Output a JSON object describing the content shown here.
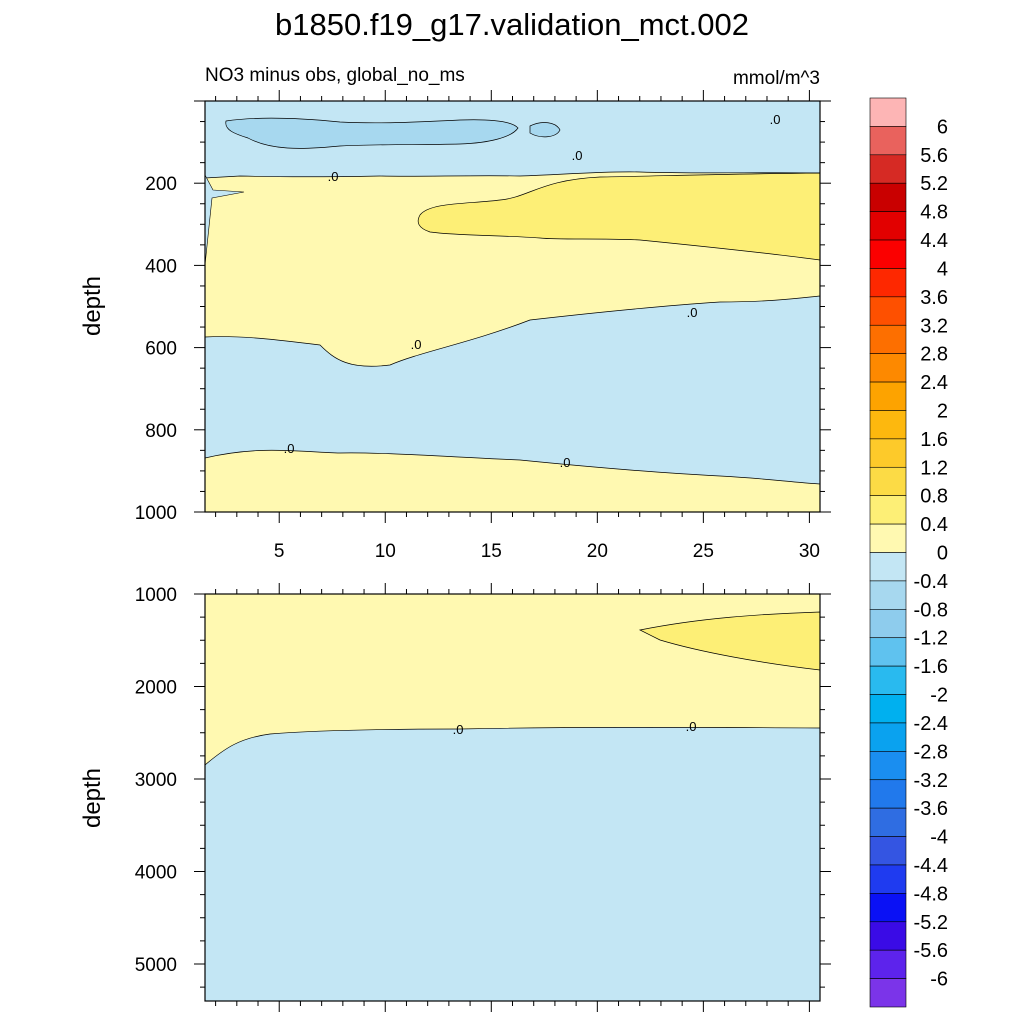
{
  "title": "b1850.f19_g17.validation_mct.002",
  "subtitle_left": "NO3 minus obs, global_no_ms",
  "subtitle_right": "mmol/m^3",
  "colors": {
    "neg_pale": "#c3e6f4",
    "neg_mid": "#a7d8ef",
    "pos_pale": "#fff9b1",
    "pos_mid": "#fdef76",
    "pos_strong": "#fce35a",
    "contour_line": "#000000"
  },
  "chart_data": [
    {
      "type": "heatmap",
      "panel": "upper",
      "x": [
        2,
        5,
        10,
        15,
        20,
        25,
        30
      ],
      "xticks": [
        "5",
        "10",
        "15",
        "20",
        "25",
        "30"
      ],
      "xlim": [
        1.5,
        30.5
      ],
      "ylabel": "depth",
      "ylim": [
        1000,
        0
      ],
      "yticks": [
        "200",
        "400",
        "600",
        "800",
        "1000"
      ],
      "contour_labels": [
        ".0",
        ".0",
        ".0",
        ".0",
        ".0",
        ".0",
        ".0"
      ],
      "regions": [
        {
          "zone": "0 to 50 m",
          "value_range": [
            -0.4,
            0
          ]
        },
        {
          "zone": "50 to 150 m",
          "value_range": [
            -0.8,
            -0.4
          ]
        },
        {
          "zone": "150 to 550 m",
          "value_range": [
            0,
            0.4
          ]
        },
        {
          "zone": "200 to 350 m, x 12 to 30",
          "value_range": [
            0.4,
            0.8
          ]
        },
        {
          "zone": "550 to 900 m",
          "value_range": [
            -0.4,
            0
          ]
        },
        {
          "zone": "900 to 1000 m",
          "value_range": [
            0,
            0.4
          ]
        }
      ]
    },
    {
      "type": "heatmap",
      "panel": "lower",
      "x": [
        2,
        5,
        10,
        15,
        20,
        25,
        30
      ],
      "xlim": [
        1.5,
        30.5
      ],
      "ylabel": "depth",
      "ylim": [
        5400,
        1000
      ],
      "yticks": [
        "1000",
        "2000",
        "3000",
        "4000",
        "5000"
      ],
      "contour_labels": [
        ".0",
        ".0"
      ],
      "regions": [
        {
          "zone": "1000 to 2500 m",
          "value_range": [
            0,
            0.4
          ]
        },
        {
          "zone": "1200 to 1800 m, x 22 to 30",
          "value_range": [
            0.4,
            0.8
          ]
        },
        {
          "zone": "2500 to 5400 m",
          "value_range": [
            -0.4,
            0
          ]
        }
      ]
    }
  ],
  "colorbar": {
    "labels": [
      "6",
      "5.6",
      "5.2",
      "4.8",
      "4.4",
      "4",
      "3.6",
      "3.2",
      "2.8",
      "2.4",
      "2",
      "1.6",
      "1.2",
      "0.8",
      "0.4",
      "0",
      "-0.4",
      "-0.8",
      "-1.2",
      "-1.6",
      "-2",
      "-2.4",
      "-2.8",
      "-3.2",
      "-3.6",
      "-4",
      "-4.4",
      "-4.8",
      "-5.2",
      "-5.6",
      "-6"
    ],
    "colors": [
      "#fdb5b5",
      "#e9625d",
      "#d62a24",
      "#c90000",
      "#e20000",
      "#fb0000",
      "#fe2800",
      "#fe5000",
      "#fd6f00",
      "#fd8900",
      "#fda300",
      "#fdb80e",
      "#fdca2a",
      "#fcdb45",
      "#fdef76",
      "#fff9b1",
      "#c3e6f4",
      "#a7d8ef",
      "#8ecced",
      "#5fc2ef",
      "#29baef",
      "#00b0ef",
      "#0aa2ef",
      "#1a8ef0",
      "#2179ec",
      "#2f6de2",
      "#3455e2",
      "#1f3bf0",
      "#0a11f5",
      "#3a0be6",
      "#5d23ec",
      "#7b34e9"
    ]
  }
}
